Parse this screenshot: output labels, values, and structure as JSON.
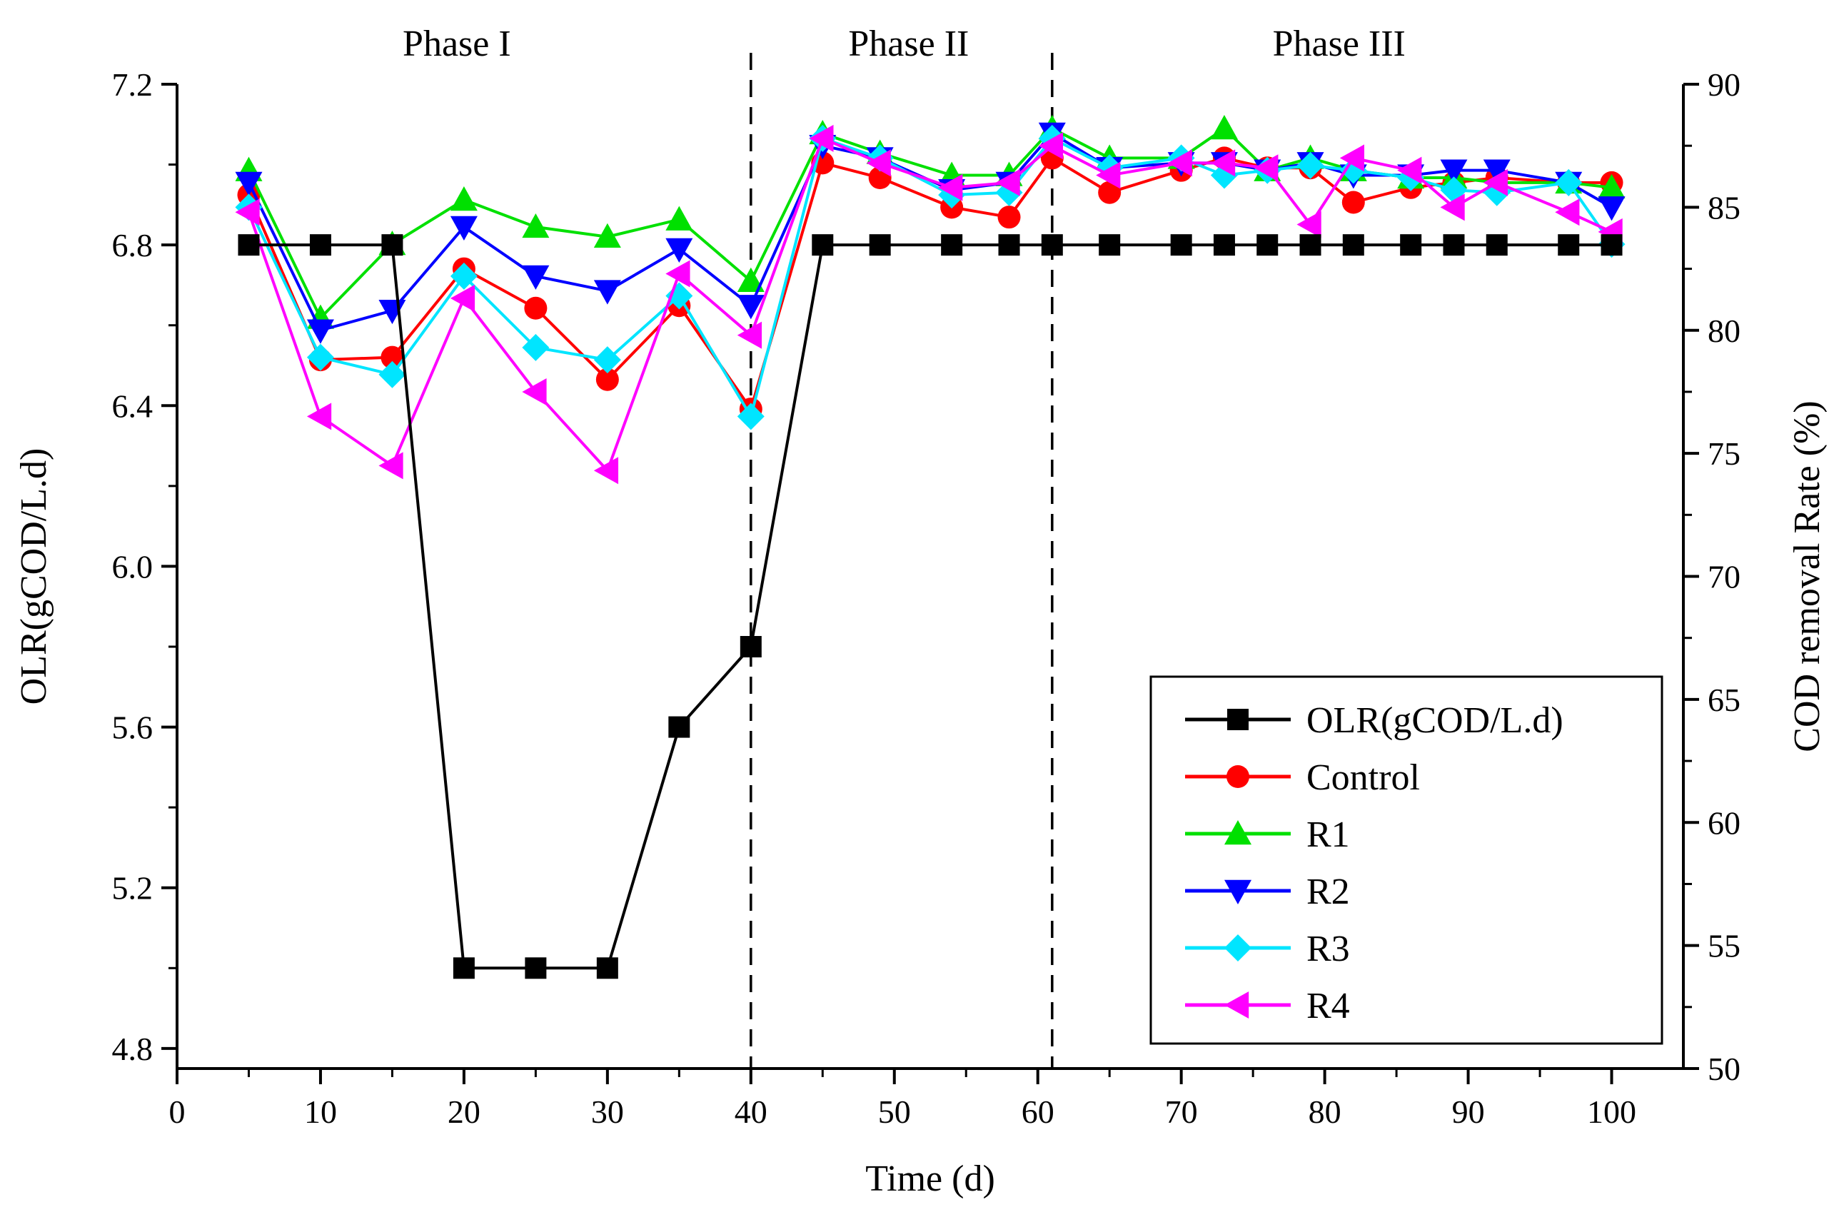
{
  "chart_data": {
    "type": "line",
    "title": "",
    "xlabel": "Time (d)",
    "ylabel": "OLR(gCOD/L.d)",
    "y2label": "COD removal Rate (%)",
    "xlim": [
      0,
      105
    ],
    "ylim": [
      4.75,
      7.2
    ],
    "y2lim": [
      50,
      90
    ],
    "xticks": [
      "0",
      "10",
      "20",
      "30",
      "40",
      "50",
      "60",
      "70",
      "80",
      "90",
      "100"
    ],
    "yticks": [
      "4.8",
      "5.2",
      "5.6",
      "6.0",
      "6.4",
      "6.8",
      "7.2"
    ],
    "y2ticks": [
      "50",
      "55",
      "60",
      "65",
      "70",
      "75",
      "80",
      "85",
      "90"
    ],
    "phases": [
      {
        "label": "Phase I",
        "x_center": 19.5
      },
      {
        "label": "Phase II",
        "x_center": 51
      },
      {
        "label": "Phase III",
        "x_center": 81
      }
    ],
    "phase_boundaries": [
      40,
      61
    ],
    "legend_position": "bottom-right",
    "series": [
      {
        "name": "OLR(gCOD/L.d)",
        "axis": "left",
        "marker": "square",
        "color": "#000000",
        "x": [
          5,
          10,
          15,
          20,
          25,
          30,
          35,
          40,
          45,
          49,
          54,
          58,
          61,
          65,
          70,
          73,
          76,
          79,
          82,
          86,
          89,
          92,
          97,
          100
        ],
        "values": [
          6.8,
          6.8,
          6.8,
          5.0,
          5.0,
          5.0,
          5.6,
          5.8,
          6.8,
          6.8,
          6.8,
          6.8,
          6.8,
          6.8,
          6.8,
          6.8,
          6.8,
          6.8,
          6.8,
          6.8,
          6.8,
          6.8,
          6.8,
          6.8
        ]
      },
      {
        "name": "Control",
        "axis": "right",
        "marker": "circle",
        "color": "#ff0000",
        "x": [
          5,
          10,
          15,
          20,
          25,
          30,
          35,
          40,
          45,
          49,
          54,
          58,
          61,
          65,
          70,
          73,
          76,
          79,
          82,
          86,
          89,
          92,
          97,
          100
        ],
        "values": [
          85.5,
          78.8,
          78.9,
          82.5,
          80.9,
          78.0,
          81.0,
          76.8,
          86.8,
          86.2,
          85.0,
          84.6,
          87.0,
          85.6,
          86.5,
          87.0,
          86.6,
          86.6,
          85.2,
          85.8,
          86.0,
          86.2,
          86.0,
          86.0
        ]
      },
      {
        "name": "R1",
        "axis": "right",
        "marker": "triangle-up",
        "color": "#00e000",
        "x": [
          5,
          10,
          15,
          20,
          25,
          30,
          35,
          40,
          45,
          49,
          54,
          58,
          61,
          65,
          70,
          73,
          76,
          79,
          82,
          86,
          89,
          92,
          97,
          100
        ],
        "values": [
          86.5,
          80.5,
          83.5,
          85.3,
          84.2,
          83.8,
          84.5,
          82.0,
          88.0,
          87.2,
          86.3,
          86.3,
          88.2,
          87.0,
          87.0,
          88.2,
          86.5,
          87.0,
          86.5,
          86.2,
          86.2,
          86.0,
          86.0,
          85.8
        ]
      },
      {
        "name": "R2",
        "axis": "right",
        "marker": "triangle-down",
        "color": "#0000ff",
        "x": [
          5,
          10,
          15,
          20,
          25,
          30,
          35,
          40,
          45,
          49,
          54,
          58,
          61,
          65,
          70,
          73,
          76,
          79,
          82,
          86,
          89,
          92,
          97,
          100
        ],
        "values": [
          86.0,
          80.0,
          80.8,
          84.2,
          82.2,
          81.6,
          83.3,
          81.0,
          87.5,
          87.0,
          85.7,
          86.0,
          88.0,
          86.6,
          86.8,
          86.8,
          86.5,
          86.8,
          86.3,
          86.3,
          86.5,
          86.5,
          86.0,
          85.0
        ]
      },
      {
        "name": "R3",
        "axis": "right",
        "marker": "diamond",
        "color": "#00e5ff",
        "x": [
          5,
          10,
          15,
          20,
          25,
          30,
          35,
          40,
          45,
          49,
          54,
          58,
          61,
          65,
          70,
          73,
          76,
          79,
          82,
          86,
          89,
          92,
          97,
          100
        ],
        "values": [
          85.0,
          78.9,
          78.2,
          82.2,
          79.3,
          78.8,
          81.4,
          76.5,
          87.8,
          87.0,
          85.5,
          85.6,
          87.8,
          86.6,
          87.0,
          86.3,
          86.5,
          86.7,
          86.5,
          86.2,
          85.7,
          85.6,
          86.0,
          83.5
        ]
      },
      {
        "name": "R4",
        "axis": "right",
        "marker": "triangle-left",
        "color": "#ff00ff",
        "x": [
          5,
          10,
          15,
          20,
          25,
          30,
          35,
          40,
          45,
          49,
          54,
          58,
          61,
          65,
          70,
          73,
          76,
          79,
          82,
          86,
          89,
          92,
          97,
          100
        ],
        "values": [
          84.8,
          76.5,
          74.5,
          81.3,
          77.5,
          74.3,
          82.3,
          79.8,
          87.8,
          86.8,
          85.8,
          86.0,
          87.5,
          86.3,
          86.8,
          86.8,
          86.6,
          84.3,
          87.0,
          86.5,
          85.0,
          86.0,
          84.8,
          84.0
        ]
      }
    ]
  }
}
